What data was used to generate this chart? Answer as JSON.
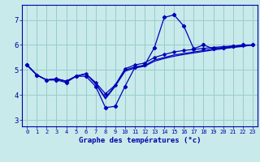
{
  "xlabel": "Graphe des températures (°c)",
  "bg_color": "#c8eaea",
  "line_color": "#0000bb",
  "grid_color": "#99cccc",
  "axis_color": "#0000aa",
  "label_color": "#0000aa",
  "ylim": [
    2.75,
    7.6
  ],
  "xlim": [
    -0.5,
    23.5
  ],
  "y_ticks": [
    3,
    4,
    5,
    6,
    7
  ],
  "x_ticks": [
    0,
    1,
    2,
    3,
    4,
    5,
    6,
    7,
    8,
    9,
    10,
    11,
    12,
    13,
    14,
    15,
    16,
    17,
    18,
    19,
    20,
    21,
    22,
    23
  ],
  "series1": [
    5.2,
    4.8,
    4.6,
    4.6,
    4.5,
    4.75,
    4.75,
    4.35,
    3.5,
    3.55,
    4.35,
    5.1,
    5.2,
    5.9,
    7.1,
    7.2,
    6.75,
    5.85,
    6.0,
    5.85,
    5.9,
    5.95,
    6.0,
    6.0
  ],
  "series2": [
    5.2,
    4.8,
    4.6,
    4.65,
    4.55,
    4.75,
    4.85,
    4.5,
    4.05,
    4.4,
    5.05,
    5.2,
    5.28,
    5.5,
    5.62,
    5.72,
    5.78,
    5.82,
    5.86,
    5.9,
    5.93,
    5.96,
    5.98,
    6.0
  ],
  "series3": [
    5.2,
    4.8,
    4.6,
    4.65,
    4.55,
    4.75,
    4.85,
    4.45,
    3.9,
    4.38,
    5.0,
    5.12,
    5.18,
    5.4,
    5.5,
    5.6,
    5.66,
    5.72,
    5.78,
    5.84,
    5.88,
    5.92,
    5.96,
    6.0
  ],
  "series4": [
    5.2,
    4.8,
    4.6,
    4.65,
    4.55,
    4.75,
    4.85,
    4.45,
    3.85,
    4.35,
    4.95,
    5.08,
    5.15,
    5.35,
    5.46,
    5.55,
    5.62,
    5.68,
    5.74,
    5.8,
    5.85,
    5.9,
    5.94,
    6.0
  ],
  "lw": 0.9,
  "ms": 2.2,
  "xlabel_fontsize": 6.5,
  "tick_fontsize_x": 5.0,
  "tick_fontsize_y": 6.5
}
